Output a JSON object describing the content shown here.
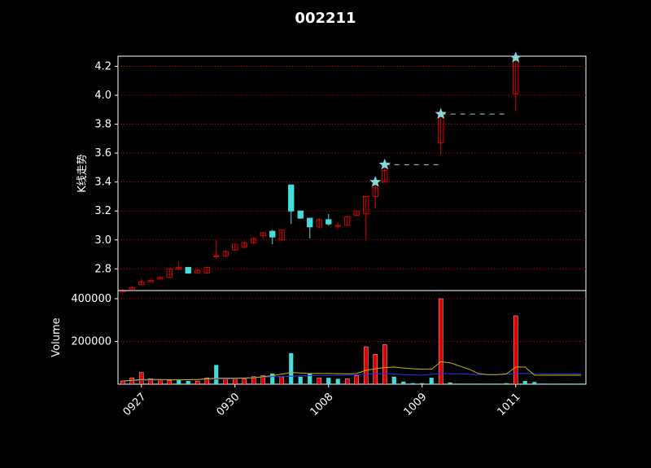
{
  "title": "002211",
  "colors": {
    "background": "#000000",
    "up": "#e00000",
    "down": "#44dddd",
    "grid": "#cc0000",
    "star": "#88d8d8",
    "ma_yellow": "#c8b400",
    "ma_blue": "#2233ee"
  },
  "chart_data": [
    {
      "type": "candlestick",
      "panel": "price",
      "ylabel": "K线走势",
      "ylim": [
        2.65,
        4.27
      ],
      "yticks": [
        2.8,
        3.0,
        3.2,
        3.4,
        3.6,
        3.8,
        4.0,
        4.2
      ],
      "grid": true,
      "candles": [
        {
          "o": 2.64,
          "h": 2.66,
          "l": 2.64,
          "c": 2.65
        },
        {
          "o": 2.66,
          "h": 2.68,
          "l": 2.66,
          "c": 2.67
        },
        {
          "o": 2.69,
          "h": 2.73,
          "l": 2.69,
          "c": 2.71
        },
        {
          "o": 2.71,
          "h": 2.73,
          "l": 2.71,
          "c": 2.72
        },
        {
          "o": 2.73,
          "h": 2.75,
          "l": 2.73,
          "c": 2.74
        },
        {
          "o": 2.74,
          "h": 2.8,
          "l": 2.74,
          "c": 2.8
        },
        {
          "o": 2.8,
          "h": 2.85,
          "l": 2.79,
          "c": 2.81
        },
        {
          "o": 2.81,
          "h": 2.81,
          "l": 2.77,
          "c": 2.77
        },
        {
          "o": 2.77,
          "h": 2.8,
          "l": 2.77,
          "c": 2.79
        },
        {
          "o": 2.77,
          "h": 2.81,
          "l": 2.77,
          "c": 2.81
        },
        {
          "o": 2.89,
          "h": 3.0,
          "l": 2.87,
          "c": 2.89
        },
        {
          "o": 2.89,
          "h": 2.93,
          "l": 2.88,
          "c": 2.92
        },
        {
          "o": 2.93,
          "h": 2.97,
          "l": 2.93,
          "c": 2.97
        },
        {
          "o": 2.95,
          "h": 2.99,
          "l": 2.94,
          "c": 2.98
        },
        {
          "o": 2.98,
          "h": 3.02,
          "l": 2.97,
          "c": 3.01
        },
        {
          "o": 3.03,
          "h": 3.05,
          "l": 3.01,
          "c": 3.05
        },
        {
          "o": 3.06,
          "h": 3.07,
          "l": 2.97,
          "c": 3.02
        },
        {
          "o": 3.0,
          "h": 3.07,
          "l": 3.0,
          "c": 3.07
        },
        {
          "o": 3.38,
          "h": 3.38,
          "l": 3.11,
          "c": 3.2
        },
        {
          "o": 3.2,
          "h": 3.2,
          "l": 3.15,
          "c": 3.15
        },
        {
          "o": 3.15,
          "h": 3.15,
          "l": 3.01,
          "c": 3.09
        },
        {
          "o": 3.09,
          "h": 3.15,
          "l": 3.08,
          "c": 3.14
        },
        {
          "o": 3.14,
          "h": 3.18,
          "l": 3.1,
          "c": 3.11
        },
        {
          "o": 3.1,
          "h": 3.12,
          "l": 3.08,
          "c": 3.1
        },
        {
          "o": 3.1,
          "h": 3.16,
          "l": 3.1,
          "c": 3.16
        },
        {
          "o": 3.17,
          "h": 3.2,
          "l": 3.17,
          "c": 3.2
        },
        {
          "o": 3.18,
          "h": 3.3,
          "l": 3.0,
          "c": 3.3
        },
        {
          "o": 3.3,
          "h": 3.4,
          "l": 3.22,
          "c": 3.36
        },
        {
          "o": 3.4,
          "h": 3.52,
          "l": 3.4,
          "c": 3.48
        },
        {
          "o": 3.67,
          "h": 3.87,
          "l": 3.59,
          "c": 3.87
        },
        {
          "o": 4.01,
          "h": 4.26,
          "l": 3.89,
          "c": 4.26
        }
      ],
      "candle_positions": [
        0,
        1,
        2,
        3,
        4,
        5,
        6,
        7,
        8,
        9,
        10,
        11,
        12,
        13,
        14,
        15,
        16,
        17,
        18,
        19,
        20,
        21,
        22,
        23,
        24,
        25,
        26,
        27,
        28,
        34,
        42
      ],
      "stars": [
        {
          "x": 27,
          "y": 3.4
        },
        {
          "x": 28,
          "y": 3.52
        },
        {
          "x": 34,
          "y": 3.87
        },
        {
          "x": 42,
          "y": 4.26
        }
      ],
      "dashed_levels": [
        {
          "x_start": 28,
          "x_end": 34,
          "y": 3.52
        },
        {
          "x_start": 34,
          "x_end": 41,
          "y": 3.87
        }
      ]
    },
    {
      "type": "bar",
      "panel": "volume",
      "ylabel": "Volume",
      "ylim": [
        0,
        400000
      ],
      "yticks": [
        200000,
        400000
      ],
      "xtick_labels": [
        "0927",
        "0930",
        "1008",
        "1009",
        "1011"
      ],
      "xtick_positions": [
        2,
        12,
        22,
        32,
        42
      ],
      "bars": [
        {
          "x": 0,
          "v": 15000,
          "up": true
        },
        {
          "x": 1,
          "v": 30000,
          "up": true
        },
        {
          "x": 2,
          "v": 55000,
          "up": true
        },
        {
          "x": 3,
          "v": 25000,
          "up": true
        },
        {
          "x": 4,
          "v": 20000,
          "up": true
        },
        {
          "x": 5,
          "v": 18000,
          "up": true
        },
        {
          "x": 6,
          "v": 20000,
          "up": false
        },
        {
          "x": 7,
          "v": 15000,
          "up": false
        },
        {
          "x": 8,
          "v": 15000,
          "up": true
        },
        {
          "x": 9,
          "v": 30000,
          "up": true
        },
        {
          "x": 10,
          "v": 90000,
          "up": false
        },
        {
          "x": 11,
          "v": 25000,
          "up": true
        },
        {
          "x": 12,
          "v": 25000,
          "up": true
        },
        {
          "x": 13,
          "v": 25000,
          "up": true
        },
        {
          "x": 14,
          "v": 35000,
          "up": true
        },
        {
          "x": 15,
          "v": 40000,
          "up": true
        },
        {
          "x": 16,
          "v": 50000,
          "up": false
        },
        {
          "x": 17,
          "v": 35000,
          "up": true
        },
        {
          "x": 18,
          "v": 145000,
          "up": false
        },
        {
          "x": 19,
          "v": 35000,
          "up": false
        },
        {
          "x": 20,
          "v": 50000,
          "up": false
        },
        {
          "x": 21,
          "v": 30000,
          "up": true
        },
        {
          "x": 22,
          "v": 30000,
          "up": false
        },
        {
          "x": 23,
          "v": 25000,
          "up": false
        },
        {
          "x": 24,
          "v": 25000,
          "up": true
        },
        {
          "x": 25,
          "v": 40000,
          "up": true
        },
        {
          "x": 26,
          "v": 175000,
          "up": true
        },
        {
          "x": 27,
          "v": 140000,
          "up": true
        },
        {
          "x": 28,
          "v": 185000,
          "up": true
        },
        {
          "x": 29,
          "v": 35000,
          "up": false
        },
        {
          "x": 30,
          "v": 12000,
          "up": false
        },
        {
          "x": 31,
          "v": 5000,
          "up": false
        },
        {
          "x": 32,
          "v": 5000,
          "up": false
        },
        {
          "x": 33,
          "v": 30000,
          "up": false
        },
        {
          "x": 34,
          "v": 400000,
          "up": true
        },
        {
          "x": 35,
          "v": 8000,
          "up": false
        },
        {
          "x": 36,
          "v": 3000,
          "up": false
        },
        {
          "x": 37,
          "v": 3000,
          "up": false
        },
        {
          "x": 38,
          "v": 3000,
          "up": false
        },
        {
          "x": 39,
          "v": 3000,
          "up": false
        },
        {
          "x": 40,
          "v": 3000,
          "up": false
        },
        {
          "x": 41,
          "v": 5000,
          "up": false
        },
        {
          "x": 42,
          "v": 320000,
          "up": true
        },
        {
          "x": 43,
          "v": 15000,
          "up": false
        },
        {
          "x": 44,
          "v": 10000,
          "up": false
        },
        {
          "x": 45,
          "v": 3000,
          "up": false
        },
        {
          "x": 46,
          "v": 3000,
          "up": false
        },
        {
          "x": 47,
          "v": 3000,
          "up": false
        },
        {
          "x": 48,
          "v": 3000,
          "up": false
        },
        {
          "x": 49,
          "v": 3000,
          "up": false
        }
      ],
      "ma_yellow": [
        [
          0,
          15000
        ],
        [
          2,
          22000
        ],
        [
          4,
          22000
        ],
        [
          6,
          20000
        ],
        [
          8,
          22000
        ],
        [
          10,
          28000
        ],
        [
          12,
          28000
        ],
        [
          14,
          30000
        ],
        [
          16,
          40000
        ],
        [
          18,
          55000
        ],
        [
          20,
          50000
        ],
        [
          22,
          50000
        ],
        [
          24,
          48000
        ],
        [
          25,
          50000
        ],
        [
          26,
          65000
        ],
        [
          27,
          72000
        ],
        [
          28,
          78000
        ],
        [
          29,
          80000
        ],
        [
          30,
          76000
        ],
        [
          31,
          72000
        ],
        [
          32,
          70000
        ],
        [
          33,
          70000
        ],
        [
          34,
          105000
        ],
        [
          35,
          100000
        ],
        [
          36,
          85000
        ],
        [
          37,
          70000
        ],
        [
          38,
          50000
        ],
        [
          39,
          45000
        ],
        [
          40,
          45000
        ],
        [
          41,
          48000
        ],
        [
          42,
          80000
        ],
        [
          43,
          80000
        ],
        [
          44,
          42000
        ],
        [
          46,
          42000
        ],
        [
          48,
          42000
        ],
        [
          49,
          42000
        ]
      ],
      "ma_blue": [
        [
          0,
          15000
        ],
        [
          4,
          20000
        ],
        [
          8,
          22000
        ],
        [
          12,
          25000
        ],
        [
          16,
          35000
        ],
        [
          20,
          40000
        ],
        [
          24,
          42000
        ],
        [
          28,
          50000
        ],
        [
          30,
          45000
        ],
        [
          32,
          42000
        ],
        [
          34,
          50000
        ],
        [
          36,
          48000
        ],
        [
          38,
          45000
        ],
        [
          40,
          45000
        ],
        [
          42,
          48000
        ],
        [
          43,
          50000
        ],
        [
          46,
          48000
        ],
        [
          49,
          48000
        ]
      ]
    }
  ]
}
